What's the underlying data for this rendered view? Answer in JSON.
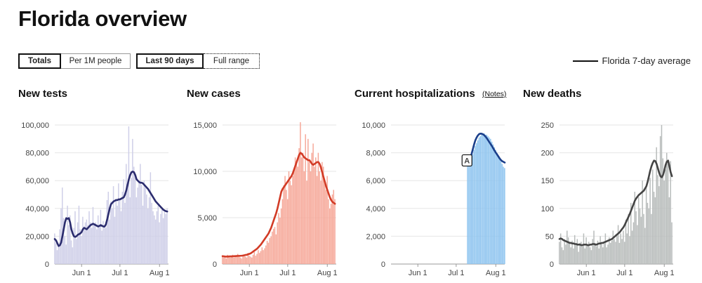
{
  "page": {
    "title": "Florida overview"
  },
  "controls": {
    "metric_toggle": [
      {
        "label": "Totals",
        "active": true
      },
      {
        "label": "Per 1M people",
        "active": false
      }
    ],
    "range_toggle": [
      {
        "label": "Last 90 days",
        "active": true
      },
      {
        "label": "Full range",
        "active": false
      }
    ]
  },
  "legend": {
    "label": "Florida 7-day average",
    "color": "#111111"
  },
  "panels": {
    "tests": {
      "title": "New tests"
    },
    "cases": {
      "title": "New cases"
    },
    "hosp": {
      "title": "Current hospitalizations",
      "notes_label": "(Notes)"
    },
    "deaths": {
      "title": "New deaths"
    }
  },
  "chart_data": [
    {
      "type": "bar",
      "title": "New tests",
      "x_range": [
        "2020-05-11",
        "2020-08-08"
      ],
      "x_ticks": [
        "Jun 1",
        "Jul 1",
        "Aug 1"
      ],
      "y_ticks": [
        "100,000",
        "80,000",
        "60,000",
        "40,000",
        "20,000",
        "0"
      ],
      "ylim": [
        0,
        100000
      ],
      "bar_color": "#cfcfe8",
      "line_color": "#2b2c6e",
      "grid": true,
      "bars_start": "2020-05-11",
      "bars": [
        22000,
        15000,
        10000,
        13000,
        25000,
        40000,
        55000,
        33000,
        20000,
        14000,
        42000,
        28000,
        35000,
        17000,
        12000,
        26000,
        38000,
        18000,
        30000,
        42000,
        25000,
        20000,
        34000,
        27000,
        30000,
        32000,
        28000,
        38000,
        30000,
        26000,
        41000,
        29000,
        30000,
        25000,
        35000,
        27000,
        39000,
        24000,
        31000,
        28000,
        26000,
        46000,
        52000,
        32000,
        45000,
        40000,
        56000,
        34000,
        47000,
        42000,
        58000,
        47000,
        38000,
        52000,
        61000,
        44000,
        72000,
        55000,
        99000,
        48000,
        62000,
        90000,
        70000,
        64000,
        48000,
        55000,
        60000,
        72000,
        57000,
        42000,
        60000,
        55000,
        50000,
        40000,
        48000,
        66000,
        44000,
        38000,
        35000,
        32000,
        38000,
        42000,
        30000,
        36000,
        40000,
        33000,
        38000,
        36000,
        40000
      ],
      "series": [
        {
          "name": "Florida 7-day average",
          "start": "2020-05-11",
          "values": [
            18000,
            17000,
            15000,
            13000,
            13500,
            15500,
            20000,
            25000,
            30000,
            33000,
            32500,
            33000,
            30000,
            25000,
            22000,
            20000,
            19500,
            20000,
            21000,
            21500,
            22000,
            23000,
            25000,
            26000,
            25500,
            25000,
            26000,
            27000,
            28000,
            28500,
            29000,
            28500,
            28000,
            27500,
            27000,
            27500,
            28000,
            27500,
            27000,
            27000,
            28500,
            32000,
            36000,
            40000,
            43000,
            44000,
            45000,
            45500,
            46000,
            46000,
            46500,
            46500,
            47000,
            47500,
            48000,
            50000,
            53000,
            57000,
            61000,
            64000,
            66000,
            66500,
            66000,
            64000,
            61000,
            60000,
            59000,
            58500,
            58500,
            58000,
            57000,
            56000,
            55000,
            54000,
            52500,
            51000,
            49500,
            48000,
            46500,
            45000,
            44000,
            43000,
            42000,
            41000,
            40000,
            39000,
            38500,
            38000,
            37800
          ]
        }
      ]
    },
    {
      "type": "bar",
      "title": "New cases",
      "x_range": [
        "2020-05-11",
        "2020-08-08"
      ],
      "x_ticks": [
        "Jun 1",
        "Jul 1",
        "Aug 1"
      ],
      "y_ticks": [
        "15,000",
        "10,000",
        "5,000",
        "0"
      ],
      "ylim": [
        0,
        15000
      ],
      "bar_color": "#f6a899",
      "line_color": "#d23b26",
      "grid": true,
      "bars_start": "2020-05-11",
      "bars": [
        800,
        700,
        900,
        600,
        1000,
        800,
        700,
        900,
        1000,
        700,
        800,
        900,
        1100,
        800,
        700,
        600,
        900,
        1000,
        800,
        700,
        1200,
        900,
        800,
        700,
        1000,
        1300,
        900,
        1100,
        1500,
        1200,
        1400,
        1800,
        1500,
        1700,
        2000,
        2500,
        2300,
        2800,
        3000,
        3500,
        3800,
        4000,
        3200,
        4500,
        5500,
        5000,
        6000,
        7000,
        8500,
        9500,
        8000,
        7000,
        10000,
        9000,
        8500,
        9500,
        10000,
        11500,
        11000,
        10500,
        12500,
        15300,
        11500,
        12000,
        10000,
        14000,
        9000,
        13500,
        11000,
        10000,
        12000,
        13000,
        10500,
        11500,
        9500,
        12000,
        10000,
        9000,
        11000,
        10500,
        9000,
        8000,
        9500,
        7000,
        6000,
        6500,
        7500,
        8000,
        7000
      ],
      "series": [
        {
          "name": "Florida 7-day average",
          "start": "2020-05-11",
          "values": [
            850,
            830,
            810,
            800,
            810,
            820,
            830,
            830,
            840,
            850,
            860,
            870,
            880,
            880,
            890,
            900,
            920,
            950,
            980,
            1000,
            1050,
            1100,
            1150,
            1250,
            1350,
            1450,
            1550,
            1650,
            1800,
            1950,
            2100,
            2300,
            2500,
            2700,
            2900,
            3100,
            3300,
            3600,
            3900,
            4300,
            4700,
            5100,
            5500,
            6000,
            6600,
            7200,
            7800,
            8100,
            8300,
            8500,
            8700,
            8900,
            9100,
            9300,
            9500,
            9800,
            10200,
            10600,
            11000,
            11400,
            11800,
            12000,
            11900,
            11700,
            11500,
            11400,
            11300,
            11200,
            11200,
            11000,
            10800,
            10700,
            10800,
            10900,
            11000,
            11000,
            10800,
            10400,
            9900,
            9400,
            8900,
            8400,
            8000,
            7600,
            7200,
            6900,
            6700,
            6600,
            6500
          ]
        }
      ]
    },
    {
      "type": "bar",
      "title": "Current hospitalizations",
      "x_range": [
        "2020-05-11",
        "2020-08-08"
      ],
      "x_ticks": [
        "Jun 1",
        "Jul 1",
        "Aug 1"
      ],
      "y_ticks": [
        "10,000",
        "8,000",
        "6,000",
        "4,000",
        "2,000",
        "0"
      ],
      "ylim": [
        0,
        10000
      ],
      "bar_color": "#8ec4ef",
      "line_color": "#1b3f8b",
      "grid": true,
      "annotation": {
        "label": "A",
        "date": "2020-07-10"
      },
      "bars_start": "2020-07-10",
      "bars": [
        7100,
        7300,
        7500,
        7700,
        7900,
        8200,
        8500,
        8700,
        8900,
        9100,
        9200,
        9300,
        9400,
        9400,
        9300,
        9300,
        9200,
        9100,
        9000,
        8800,
        8600,
        8400,
        8200,
        8000,
        7800,
        7600,
        7400,
        7200,
        7000,
        6900
      ],
      "series": [
        {
          "name": "Florida 7-day average",
          "start": "2020-07-10",
          "values": [
            7100,
            7300,
            7600,
            7900,
            8250,
            8600,
            8900,
            9100,
            9250,
            9350,
            9380,
            9370,
            9330,
            9260,
            9160,
            9040,
            8900,
            8760,
            8620,
            8480,
            8320,
            8160,
            8010,
            7880,
            7740,
            7600,
            7480,
            7400,
            7350,
            7300
          ]
        }
      ]
    },
    {
      "type": "bar",
      "title": "New deaths",
      "x_range": [
        "2020-05-11",
        "2020-08-08"
      ],
      "x_ticks": [
        "Jun 1",
        "Jul 1",
        "Aug 1"
      ],
      "y_ticks": [
        "250",
        "200",
        "150",
        "100",
        "50",
        "0"
      ],
      "ylim": [
        0,
        250
      ],
      "bar_color": "#b8bcbb",
      "line_color": "#444444",
      "grid": true,
      "bars_start": "2020-05-11",
      "bars": [
        40,
        55,
        30,
        25,
        45,
        35,
        60,
        48,
        38,
        30,
        42,
        28,
        52,
        35,
        45,
        22,
        38,
        40,
        32,
        55,
        28,
        48,
        35,
        40,
        30,
        25,
        45,
        60,
        38,
        32,
        42,
        28,
        50,
        36,
        30,
        40,
        55,
        30,
        35,
        48,
        38,
        42,
        60,
        45,
        40,
        50,
        70,
        38,
        55,
        45,
        60,
        40,
        80,
        55,
        90,
        50,
        110,
        60,
        75,
        130,
        95,
        70,
        120,
        100,
        85,
        150,
        90,
        65,
        140,
        110,
        100,
        155,
        90,
        170,
        130,
        120,
        210,
        160,
        140,
        230,
        250,
        190,
        150,
        170,
        200,
        180,
        120,
        185,
        75
      ],
      "series": [
        {
          "name": "Florida 7-day average",
          "start": "2020-05-11",
          "values": [
            45,
            46,
            45,
            43,
            42,
            41,
            40,
            39,
            38,
            38,
            37,
            37,
            36,
            36,
            35,
            35,
            35,
            34,
            34,
            35,
            35,
            35,
            34,
            34,
            35,
            35,
            36,
            36,
            35,
            35,
            36,
            37,
            37,
            38,
            38,
            39,
            40,
            41,
            42,
            43,
            44,
            45,
            47,
            49,
            51,
            53,
            55,
            57,
            60,
            63,
            66,
            70,
            75,
            80,
            85,
            90,
            96,
            102,
            108,
            114,
            118,
            121,
            124,
            126,
            128,
            130,
            132,
            136,
            140,
            148,
            158,
            168,
            176,
            182,
            186,
            185,
            180,
            172,
            164,
            158,
            156,
            160,
            168,
            178,
            184,
            186,
            176,
            165,
            158
          ]
        }
      ]
    }
  ]
}
